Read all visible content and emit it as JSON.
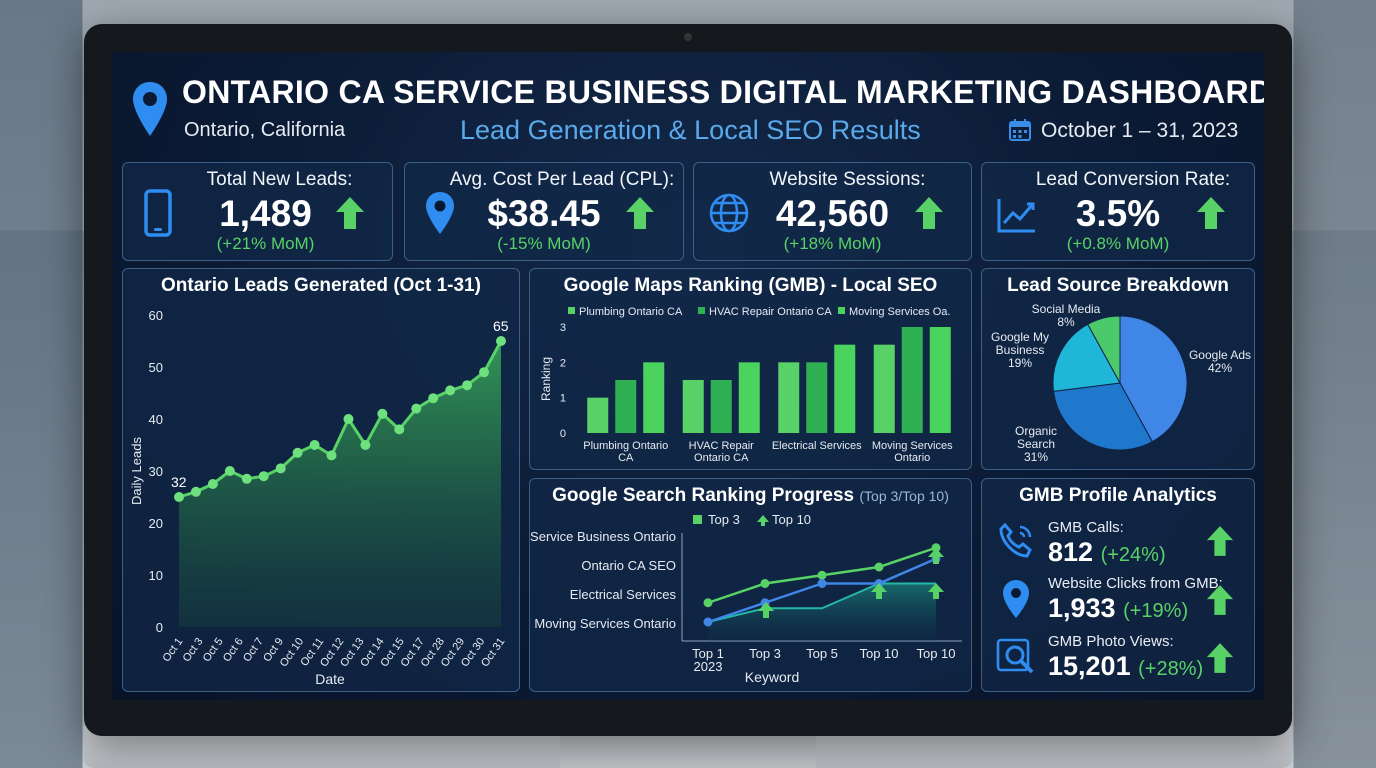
{
  "header": {
    "title": "ONTARIO CA SERVICE BUSINESS DIGITAL MARKETING DASHBOARD",
    "location": "Ontario, California",
    "subtitle": "Lead Generation & Local SEO Results",
    "date_range": "October 1 – 31, 2023"
  },
  "colors": {
    "accent_green": "#58d267",
    "accent_blue": "#5aa9ea",
    "panel": "#122848"
  },
  "kpis": [
    {
      "label": "Total New Leads:",
      "value": "1,489",
      "delta": "(+21% MoM)",
      "icon": "phone-icon"
    },
    {
      "label": "Avg. Cost Per Lead (CPL):",
      "value": "$38.45",
      "delta": "(-15% MoM)",
      "icon": "location-pin-icon"
    },
    {
      "label": "Website Sessions:",
      "value": "42,560",
      "delta": "(+18% MoM)",
      "icon": "globe-icon"
    },
    {
      "label": "Lead Conversion Rate:",
      "value": "3.5%",
      "delta": "(+0.8% MoM)",
      "icon": "trend-line-icon"
    }
  ],
  "leads_chart": {
    "title": "Ontario Leads Generated (Oct 1-31)",
    "chart_data": {
      "type": "area",
      "title": "Ontario Leads Generated (Oct 1-31)",
      "xlabel": "Date",
      "ylabel": "Daily Leads",
      "ylim": [
        0,
        60
      ],
      "yticks": [
        "0",
        "10",
        "20",
        "30",
        "40",
        "50",
        "60"
      ],
      "xticks": [
        "Oct 1",
        "Oct 3",
        "Oct 5",
        "Oct 6",
        "Oct 7",
        "Oct 9",
        "Oct 10",
        "Oct 11",
        "Oct 12",
        "Oct 13",
        "Oct 14",
        "Oct 15",
        "Oct 17",
        "Oct 28",
        "Oct 29",
        "Oct 30",
        "Oct 31"
      ],
      "values": [
        25,
        26,
        27.5,
        30,
        28.5,
        29,
        30.5,
        33.5,
        35,
        33,
        40,
        35,
        41,
        38,
        42,
        44,
        45.5,
        46.5,
        49,
        55
      ],
      "annotations": [
        "32",
        "65"
      ],
      "grid": false
    }
  },
  "maps_chart": {
    "title": "Google Maps Ranking (GMB) - Local SEO",
    "chart_data": {
      "type": "bar",
      "title": "Google Maps Ranking (GMB) - Local SEO",
      "ylabel": "Ranking",
      "ylim": [
        0,
        3
      ],
      "yticks": [
        "0",
        "1",
        "2",
        "3"
      ],
      "categories": [
        [
          "Plumbing Ontario",
          "CA"
        ],
        [
          "HVAC Repair",
          "Ontario CA"
        ],
        [
          "Electrical Services"
        ],
        [
          "Moving Services",
          "Ontario"
        ]
      ],
      "series": [
        {
          "name": "Plumbing Ontario CA",
          "values": [
            1.0,
            1.5,
            2.0,
            2.5
          ]
        },
        {
          "name": "HVAC Repair Ontario CA",
          "values": [
            1.5,
            1.5,
            2.0,
            3.0
          ]
        },
        {
          "name": "Moving Services Oa.",
          "values": [
            2.0,
            2.0,
            2.5,
            3.0
          ]
        }
      ],
      "legend": "top"
    }
  },
  "pie_chart": {
    "title": "Lead Source Breakdown",
    "chart_data": {
      "type": "pie",
      "title": "Lead Source Breakdown",
      "slices": [
        {
          "label": "Google Ads",
          "pct": "42%",
          "value": 42,
          "color": "#3f86e6"
        },
        {
          "label": "Organic Search",
          "pct": "31%",
          "value": 31,
          "color": "#1f78cc"
        },
        {
          "label": "Google My Business",
          "pct": "19%",
          "value": 19,
          "color": "#1fb6d8"
        },
        {
          "label": "Social Media",
          "pct": "8%",
          "value": 8,
          "color": "#4cc96a"
        }
      ]
    }
  },
  "search_chart": {
    "title": "Google Search Ranking Progress",
    "title_note": "(Top 3/Top 10)",
    "chart_data": {
      "type": "line",
      "title": "Google Search Ranking Progress",
      "xlabel": "Keyword",
      "x": [
        "Top 1\n2023",
        "Top 3",
        "Top 5",
        "Top 10",
        "Top 10"
      ],
      "yticks": [
        "Service Business Ontario",
        "Ontario CA SEO",
        "Electrical Services",
        "Moving Services Ontario"
      ],
      "ylim": [
        0,
        4
      ],
      "series": [
        {
          "name": "Top 3",
          "values": [
            1.1,
            1.8,
            2.1,
            2.4,
            3.1
          ]
        },
        {
          "name": "Top 10",
          "values": [
            0.4,
            1.1,
            1.8,
            1.8,
            2.7
          ]
        },
        {
          "name": "",
          "values": [
            0.4,
            0.9,
            0.9,
            1.8,
            1.8
          ]
        }
      ],
      "legend": "top"
    }
  },
  "gmb": {
    "title": "GMB Profile Analytics",
    "items": [
      {
        "label": "GMB Calls:",
        "value": "812",
        "delta": "(+24%)",
        "icon": "phone-call-icon"
      },
      {
        "label": "Website Clicks from GMB:",
        "value": "1,933",
        "delta": "(+19%)",
        "icon": "location-pin-icon"
      },
      {
        "label": "GMB Photo Views:",
        "value": "15,201",
        "delta": "(+28%)",
        "icon": "photo-search-icon"
      }
    ]
  }
}
